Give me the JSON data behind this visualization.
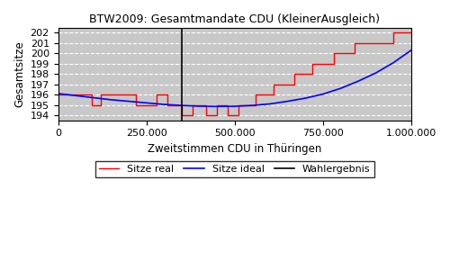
{
  "title": "BTW2009: Gesamtmandate CDU (KleinerAusgleich)",
  "xlabel": "Zweitstimmen CDU in Thüringen",
  "ylabel": "Gesamtsitze",
  "xlim": [
    0,
    1000000
  ],
  "ylim": [
    193.5,
    202.5
  ],
  "yticks": [
    194,
    195,
    196,
    197,
    198,
    199,
    200,
    201,
    202
  ],
  "xticks": [
    0,
    250000,
    500000,
    750000,
    1000000
  ],
  "xticklabels": [
    "0",
    "250.000",
    "500.000",
    "750.000",
    "1.000.000"
  ],
  "wahlergebnis_x": 350000,
  "background_color": "#c8c8c8",
  "grid_color": "#ffffff",
  "legend_labels": [
    "Sitze real",
    "Sitze ideal",
    "Wahlergebnis"
  ],
  "real_x": [
    0,
    95000,
    95000,
    120000,
    120000,
    220000,
    220000,
    280000,
    280000,
    310000,
    310000,
    350000,
    350000,
    380000,
    380000,
    420000,
    420000,
    450000,
    450000,
    480000,
    480000,
    510000,
    510000,
    560000,
    560000,
    610000,
    610000,
    670000,
    670000,
    720000,
    720000,
    780000,
    780000,
    840000,
    840000,
    890000,
    890000,
    950000,
    950000,
    1000000
  ],
  "real_y": [
    196,
    196,
    195,
    195,
    196,
    196,
    195,
    195,
    196,
    196,
    195,
    195,
    194,
    194,
    195,
    195,
    194,
    194,
    195,
    195,
    194,
    194,
    195,
    195,
    196,
    196,
    197,
    197,
    198,
    198,
    199,
    199,
    200,
    200,
    201,
    201,
    201,
    201,
    202,
    202
  ],
  "ideal_x": [
    0,
    50000,
    100000,
    150000,
    200000,
    250000,
    300000,
    350000,
    400000,
    450000,
    500000,
    550000,
    600000,
    650000,
    700000,
    750000,
    800000,
    850000,
    900000,
    950000,
    1000000
  ],
  "ideal_y": [
    196.1,
    195.9,
    195.7,
    195.5,
    195.35,
    195.2,
    195.05,
    194.95,
    194.88,
    194.85,
    194.87,
    194.95,
    195.1,
    195.35,
    195.65,
    196.05,
    196.6,
    197.3,
    198.1,
    199.1,
    200.3
  ]
}
